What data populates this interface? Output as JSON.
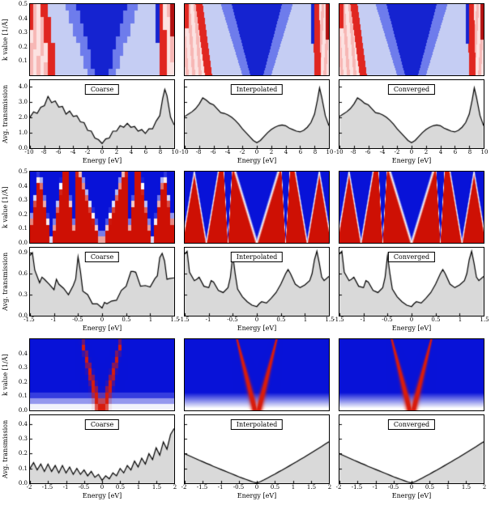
{
  "chart_data": [
    {
      "type": "heatmap+area",
      "panel_labels": [
        "Coarse",
        "Interpolated",
        "Converged"
      ],
      "heatmap": {
        "type": "heatmap",
        "pattern": "bands-wide",
        "ylabel": "k value [1/Å]",
        "xlim": [
          -10,
          10
        ],
        "ylim": [
          0,
          0.5
        ],
        "yticks": [
          "0.5",
          "0.4",
          "0.3",
          "0.2",
          "0.1"
        ],
        "coarse_grid": [
          40,
          11
        ],
        "colors": {
          "dark_blue": "#1523d0",
          "mid_blue": "#6e7cec",
          "light_blue": "#c5cdf3",
          "red": "#e02620",
          "dark_red": "#b21010",
          "pink": "#f7b7b5",
          "pale_pink": "#fce2e1"
        }
      },
      "line": {
        "type": "area",
        "xlabel": "Energy [eV]",
        "ylabel": "Avg. transmission",
        "xlim": [
          -10,
          10
        ],
        "ylim": [
          0,
          4.4
        ],
        "yticks": [
          "4.0",
          "3.0",
          "2.0",
          "1.0",
          "0.0"
        ],
        "xticks": [
          "-10",
          "-8",
          "-6",
          "-4",
          "-2",
          "0",
          "2",
          "4",
          "6",
          "8",
          "10"
        ],
        "fill": "#d9d9d9",
        "line_color": "#000000",
        "x": [
          -10,
          -9.5,
          -9,
          -8.5,
          -8,
          -7.5,
          -7,
          -6.5,
          -6,
          -5.5,
          -5,
          -4.5,
          -4,
          -3.5,
          -3,
          -2.5,
          -2,
          -1.5,
          -1,
          -0.5,
          0,
          0.5,
          1,
          1.5,
          2,
          2.5,
          3,
          3.5,
          4,
          4.5,
          5,
          5.5,
          6,
          6.5,
          7,
          7.5,
          8,
          8.4,
          8.7,
          9,
          9.5,
          10
        ],
        "series": [
          {
            "name": "Coarse",
            "y": [
              2.0,
              2.35,
              2.25,
              2.65,
              2.75,
              3.35,
              2.95,
              3.05,
              2.65,
              2.7,
              2.2,
              2.4,
              2.05,
              2.1,
              1.7,
              1.65,
              1.15,
              1.1,
              0.65,
              0.55,
              0.3,
              0.6,
              0.65,
              1.1,
              1.1,
              1.45,
              1.35,
              1.6,
              1.35,
              1.4,
              1.1,
              1.2,
              0.95,
              1.25,
              1.25,
              1.75,
              2.1,
              3.2,
              3.8,
              3.4,
              2.0,
              1.5
            ]
          },
          {
            "name": "Interpolated",
            "y": [
              2.05,
              2.2,
              2.35,
              2.55,
              2.85,
              3.25,
              3.1,
              2.9,
              2.8,
              2.55,
              2.3,
              2.25,
              2.15,
              2.0,
              1.8,
              1.55,
              1.25,
              1.0,
              0.75,
              0.5,
              0.35,
              0.5,
              0.75,
              1.0,
              1.2,
              1.35,
              1.45,
              1.5,
              1.45,
              1.3,
              1.2,
              1.1,
              1.05,
              1.15,
              1.35,
              1.65,
              2.2,
              3.1,
              3.9,
              3.3,
              2.1,
              1.45
            ]
          },
          {
            "name": "Converged",
            "y": [
              2.05,
              2.2,
              2.35,
              2.55,
              2.85,
              3.25,
              3.1,
              2.9,
              2.8,
              2.55,
              2.3,
              2.25,
              2.15,
              2.0,
              1.8,
              1.55,
              1.25,
              1.0,
              0.75,
              0.5,
              0.35,
              0.5,
              0.75,
              1.0,
              1.2,
              1.35,
              1.45,
              1.5,
              1.45,
              1.3,
              1.2,
              1.1,
              1.05,
              1.15,
              1.35,
              1.65,
              2.2,
              3.1,
              3.9,
              3.3,
              2.1,
              1.45
            ]
          }
        ]
      }
    },
    {
      "type": "heatmap+area",
      "panel_labels": [
        "Coarse",
        "Interpolated",
        "Converged"
      ],
      "heatmap": {
        "type": "heatmap",
        "pattern": "dirac-cones",
        "ylabel": "k value [1/Å]",
        "xlim": [
          -1.5,
          1.5
        ],
        "ylim": [
          0,
          0.5
        ],
        "yticks": [
          "0.5",
          "0.4",
          "0.3",
          "0.2",
          "0.1",
          "0.0"
        ],
        "coarse_grid": [
          44,
          12
        ],
        "colors": {
          "blue": "#0812d8",
          "red": "#ce1004"
        }
      },
      "line": {
        "type": "area",
        "xlabel": "Energy [eV]",
        "ylabel": "Avg. transmission",
        "xlim": [
          -1.5,
          1.5
        ],
        "ylim": [
          0,
          0.97
        ],
        "yticks": [
          "0.9",
          "0.6",
          "0.3",
          "0.0"
        ],
        "xticks": [
          "-1.5",
          "-1",
          "-0.5",
          "0",
          "0.5",
          "1",
          "1.5"
        ],
        "fill": "#d9d9d9",
        "line_color": "#000000",
        "x": [
          -1.5,
          -1.45,
          -1.4,
          -1.3,
          -1.25,
          -1.2,
          -1.1,
          -1.0,
          -0.95,
          -0.9,
          -0.8,
          -0.7,
          -0.6,
          -0.55,
          -0.5,
          -0.45,
          -0.4,
          -0.3,
          -0.2,
          -0.1,
          0,
          0.05,
          0.1,
          0.2,
          0.3,
          0.4,
          0.5,
          0.6,
          0.65,
          0.7,
          0.8,
          0.9,
          1.0,
          1.1,
          1.15,
          1.2,
          1.25,
          1.3,
          1.35,
          1.4,
          1.5
        ],
        "series": [
          {
            "name": "Coarse",
            "y": [
              0.86,
              0.9,
              0.65,
              0.47,
              0.55,
              0.52,
              0.45,
              0.37,
              0.52,
              0.45,
              0.39,
              0.3,
              0.43,
              0.52,
              0.84,
              0.63,
              0.35,
              0.3,
              0.17,
              0.17,
              0.11,
              0.19,
              0.17,
              0.21,
              0.22,
              0.36,
              0.42,
              0.63,
              0.63,
              0.62,
              0.42,
              0.43,
              0.41,
              0.53,
              0.57,
              0.83,
              0.89,
              0.78,
              0.52,
              0.53,
              0.54
            ]
          },
          {
            "name": "Interpolated",
            "y": [
              0.88,
              0.92,
              0.62,
              0.5,
              0.52,
              0.55,
              0.42,
              0.4,
              0.5,
              0.48,
              0.36,
              0.33,
              0.4,
              0.55,
              0.86,
              0.6,
              0.38,
              0.27,
              0.2,
              0.15,
              0.13,
              0.17,
              0.2,
              0.18,
              0.25,
              0.33,
              0.45,
              0.6,
              0.66,
              0.6,
              0.45,
              0.4,
              0.44,
              0.5,
              0.6,
              0.8,
              0.92,
              0.75,
              0.55,
              0.5,
              0.56
            ]
          },
          {
            "name": "Converged",
            "y": [
              0.88,
              0.92,
              0.62,
              0.5,
              0.52,
              0.55,
              0.42,
              0.4,
              0.5,
              0.48,
              0.36,
              0.33,
              0.4,
              0.55,
              0.86,
              0.6,
              0.38,
              0.27,
              0.2,
              0.15,
              0.13,
              0.17,
              0.2,
              0.18,
              0.25,
              0.33,
              0.45,
              0.6,
              0.66,
              0.6,
              0.45,
              0.4,
              0.44,
              0.5,
              0.6,
              0.8,
              0.92,
              0.75,
              0.55,
              0.5,
              0.56
            ]
          }
        ]
      }
    },
    {
      "type": "heatmap+area",
      "panel_labels": [
        "Coarse",
        "Interpolated",
        "Converged"
      ],
      "heatmap": {
        "type": "heatmap",
        "pattern": "single-cone",
        "ylabel": "k value [1/Å]",
        "xlim": [
          -2,
          2
        ],
        "ylim": [
          0,
          0.5
        ],
        "yticks": [
          "0.4",
          "0.3",
          "0.2",
          "0.1",
          "0.0"
        ],
        "coarse_grid": [
          44,
          12
        ],
        "colors": {
          "blue": "#0812d8",
          "red": "#d81c0c"
        }
      },
      "line": {
        "type": "area",
        "xlabel": "Energy [eV]",
        "ylabel": "Avg. transmission",
        "xlim": [
          -2,
          2
        ],
        "ylim": [
          0,
          0.46
        ],
        "yticks": [
          "0.4",
          "0.3",
          "0.2",
          "0.1",
          "0.0"
        ],
        "xticks": [
          "-2",
          "-1.5",
          "-1",
          "-0.5",
          "0",
          "0.5",
          "1",
          "1.5",
          "2"
        ],
        "fill": "#d9d9d9",
        "line_color": "#000000",
        "x": [
          -2,
          -1.9,
          -1.8,
          -1.7,
          -1.6,
          -1.5,
          -1.4,
          -1.3,
          -1.2,
          -1.1,
          -1,
          -0.9,
          -0.8,
          -0.7,
          -0.6,
          -0.5,
          -0.4,
          -0.3,
          -0.2,
          -0.1,
          0,
          0.1,
          0.2,
          0.3,
          0.4,
          0.5,
          0.6,
          0.7,
          0.8,
          0.9,
          1,
          1.1,
          1.2,
          1.3,
          1.4,
          1.5,
          1.6,
          1.7,
          1.8,
          1.9,
          2
        ],
        "series": [
          {
            "name": "Coarse",
            "y": [
              0.1,
              0.14,
              0.09,
              0.13,
              0.08,
              0.13,
              0.08,
              0.12,
              0.07,
              0.12,
              0.07,
              0.11,
              0.06,
              0.1,
              0.06,
              0.09,
              0.05,
              0.08,
              0.04,
              0.06,
              0.02,
              0.05,
              0.03,
              0.07,
              0.05,
              0.1,
              0.07,
              0.12,
              0.09,
              0.15,
              0.11,
              0.17,
              0.13,
              0.2,
              0.16,
              0.24,
              0.19,
              0.28,
              0.23,
              0.33,
              0.37
            ]
          },
          {
            "name": "Interpolated",
            "y": [
              0.2,
              0.189,
              0.178,
              0.167,
              0.156,
              0.146,
              0.135,
              0.125,
              0.114,
              0.104,
              0.094,
              0.084,
              0.074,
              0.064,
              0.054,
              0.044,
              0.035,
              0.026,
              0.017,
              0.008,
              0.002,
              0.011,
              0.023,
              0.036,
              0.049,
              0.062,
              0.076,
              0.089,
              0.103,
              0.117,
              0.131,
              0.145,
              0.16,
              0.174,
              0.189,
              0.204,
              0.219,
              0.234,
              0.249,
              0.265,
              0.28
            ]
          },
          {
            "name": "Converged",
            "y": [
              0.2,
              0.189,
              0.178,
              0.167,
              0.156,
              0.146,
              0.135,
              0.125,
              0.114,
              0.104,
              0.094,
              0.084,
              0.074,
              0.064,
              0.054,
              0.044,
              0.035,
              0.026,
              0.017,
              0.008,
              0.002,
              0.011,
              0.023,
              0.036,
              0.049,
              0.062,
              0.076,
              0.089,
              0.103,
              0.117,
              0.131,
              0.145,
              0.16,
              0.174,
              0.189,
              0.204,
              0.219,
              0.234,
              0.249,
              0.265,
              0.28
            ]
          }
        ]
      }
    }
  ]
}
